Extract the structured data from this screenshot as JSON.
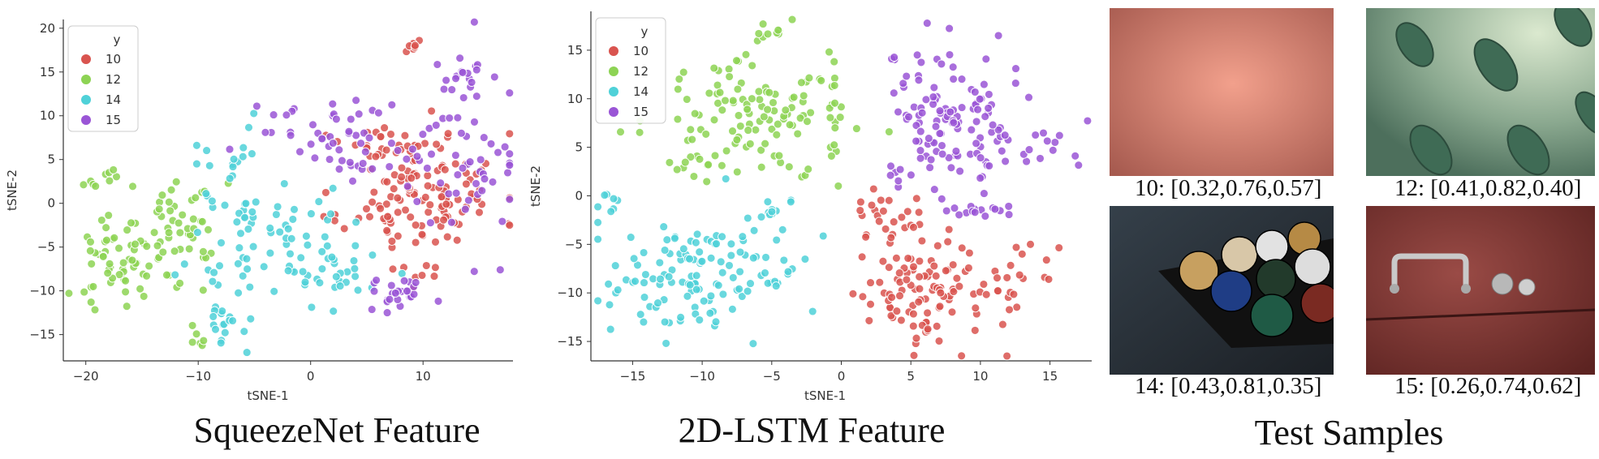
{
  "chart_data": [
    {
      "type": "scatter",
      "title": "SqueezeNet Feature",
      "xlabel": "tSNE-1",
      "ylabel": "tSNE-2",
      "xlim": [
        -22,
        18
      ],
      "ylim": [
        -18,
        21
      ],
      "xticks": [
        -20,
        -10,
        0,
        10
      ],
      "yticks": [
        -15,
        -10,
        -5,
        0,
        5,
        10,
        15,
        20
      ],
      "legend": {
        "title": "y",
        "position": "top-left"
      },
      "series": [
        {
          "name": "10",
          "color": "#d9544f",
          "clusters": [
            {
              "cx": 10,
              "cy": 1,
              "sx": 3.5,
              "sy": 3.5,
              "n": 120
            },
            {
              "cx": 7,
              "cy": 6,
              "sx": 2,
              "sy": 2,
              "n": 25
            },
            {
              "cx": 9,
              "cy": 18,
              "sx": 0.5,
              "sy": 0.4,
              "n": 8
            },
            {
              "cx": 10,
              "cy": -8,
              "sx": 1.5,
              "sy": 1,
              "n": 8
            }
          ]
        },
        {
          "name": "12",
          "color": "#8dd354",
          "clusters": [
            {
              "cx": -17,
              "cy": -6,
              "sx": 2,
              "sy": 2.5,
              "n": 55
            },
            {
              "cx": -12,
              "cy": -3,
              "sx": 2,
              "sy": 3,
              "n": 50
            },
            {
              "cx": -18,
              "cy": 2.5,
              "sx": 1,
              "sy": 0.6,
              "n": 10
            },
            {
              "cx": -10,
              "cy": -15.5,
              "sx": 0.6,
              "sy": 0.6,
              "n": 6
            }
          ]
        },
        {
          "name": "14",
          "color": "#4fd1d8",
          "clusters": [
            {
              "cx": -3,
              "cy": -5,
              "sx": 4,
              "sy": 4,
              "n": 90
            },
            {
              "cx": -8,
              "cy": -13,
              "sx": 1,
              "sy": 1.3,
              "n": 15
            },
            {
              "cx": -7,
              "cy": 5,
              "sx": 1.5,
              "sy": 2,
              "n": 15
            },
            {
              "cx": 3,
              "cy": -9,
              "sx": 2,
              "sy": 1.5,
              "n": 10
            }
          ]
        },
        {
          "name": "15",
          "color": "#9a55d6",
          "clusters": [
            {
              "cx": 2,
              "cy": 8,
              "sx": 3.5,
              "sy": 2.5,
              "n": 55
            },
            {
              "cx": 14,
              "cy": 6,
              "sx": 2.5,
              "sy": 6,
              "n": 55
            },
            {
              "cx": 8,
              "cy": -10,
              "sx": 1.2,
              "sy": 1.2,
              "n": 25
            },
            {
              "cx": 12,
              "cy": 14,
              "sx": 1.5,
              "sy": 1.5,
              "n": 12
            }
          ]
        }
      ]
    },
    {
      "type": "scatter",
      "title": "2D-LSTM Feature",
      "xlabel": "tSNE-1",
      "ylabel": "tSNE-2",
      "xlim": [
        -18,
        18
      ],
      "ylim": [
        -17,
        19
      ],
      "xticks": [
        -15,
        -10,
        -5,
        0,
        5,
        10,
        15
      ],
      "yticks": [
        -15,
        -10,
        -5,
        0,
        5,
        10,
        15
      ],
      "legend": {
        "title": "y",
        "position": "top-left"
      },
      "series": [
        {
          "name": "10",
          "color": "#d9544f",
          "clusters": [
            {
              "cx": 6,
              "cy": -10,
              "sx": 2.5,
              "sy": 2.5,
              "n": 100
            },
            {
              "cx": 3,
              "cy": -3,
              "sx": 1.5,
              "sy": 2.5,
              "n": 30
            },
            {
              "cx": 12.5,
              "cy": -7.5,
              "sx": 1.2,
              "sy": 2.5,
              "n": 15
            }
          ]
        },
        {
          "name": "12",
          "color": "#8dd354",
          "clusters": [
            {
              "cx": -6.5,
              "cy": 8.5,
              "sx": 3.5,
              "sy": 3,
              "n": 120
            },
            {
              "cx": -5,
              "cy": 17,
              "sx": 0.8,
              "sy": 0.5,
              "n": 8
            },
            {
              "cx": -11,
              "cy": 3,
              "sx": 1,
              "sy": 0.6,
              "n": 8
            },
            {
              "cx": -0.5,
              "cy": 8,
              "sx": 0.3,
              "sy": 1.3,
              "n": 8
            }
          ]
        },
        {
          "name": "14",
          "color": "#4fd1d8",
          "clusters": [
            {
              "cx": -10,
              "cy": -8.5,
              "sx": 3.5,
              "sy": 3,
              "n": 130
            },
            {
              "cx": -5,
              "cy": -1,
              "sx": 0.8,
              "sy": 0.8,
              "n": 10
            },
            {
              "cx": -16,
              "cy": -1,
              "sx": 1,
              "sy": 1,
              "n": 8
            }
          ]
        },
        {
          "name": "15",
          "color": "#9a55d6",
          "clusters": [
            {
              "cx": 8,
              "cy": 8,
              "sx": 2.5,
              "sy": 4,
              "n": 120
            },
            {
              "cx": 10,
              "cy": -1.5,
              "sx": 1.3,
              "sy": 0.4,
              "n": 15
            },
            {
              "cx": 14.5,
              "cy": 4.5,
              "sx": 1.5,
              "sy": 1.5,
              "n": 15
            },
            {
              "cx": 4,
              "cy": 2.5,
              "sx": 0.6,
              "sy": 0.6,
              "n": 6
            }
          ]
        }
      ]
    }
  ],
  "captions": {
    "chart1": "SqueezeNet Feature",
    "chart2": "2D-LSTM Feature",
    "samples": "Test Samples"
  },
  "samples": [
    {
      "label": "10: [0.32,0.76,0.57]",
      "scene": "pink-gradient",
      "colors": [
        "#ef9a86",
        "#b86356"
      ]
    },
    {
      "label": "12: [0.41,0.82,0.40]",
      "scene": "green-ellipses",
      "colors": [
        "#c7dbbf",
        "#476b58"
      ]
    },
    {
      "label": "14: [0.43,0.81,0.35]",
      "scene": "billiard-balls",
      "colors": [
        "#2b3138",
        "#151515"
      ]
    },
    {
      "label": "15: [0.26,0.74,0.62]",
      "scene": "red-surface-handle",
      "colors": [
        "#944944",
        "#5a2220"
      ]
    }
  ]
}
